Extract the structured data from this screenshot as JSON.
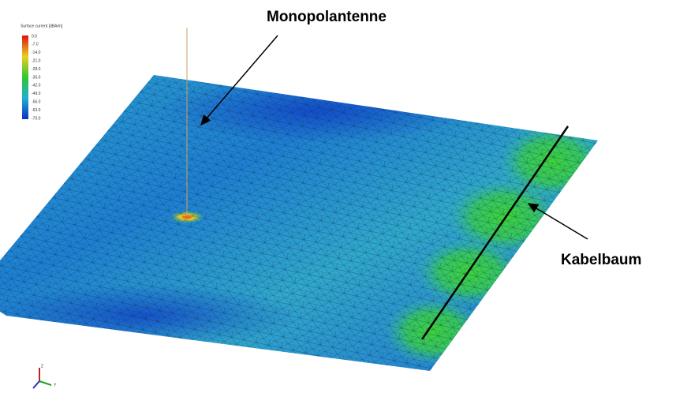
{
  "annotations": {
    "monopole": "Monopolantenne",
    "harness": "Kabelbaum"
  },
  "legend": {
    "title": "Surface current [dBA/m]",
    "labels": [
      "0.0",
      "-7.0",
      "-14.0",
      "-21.0",
      "-28.0",
      "-35.0",
      "-42.0",
      "-49.0",
      "-56.0",
      "-63.0",
      "-70.0"
    ]
  },
  "axes": {
    "z": "Z",
    "y": "Y"
  }
}
